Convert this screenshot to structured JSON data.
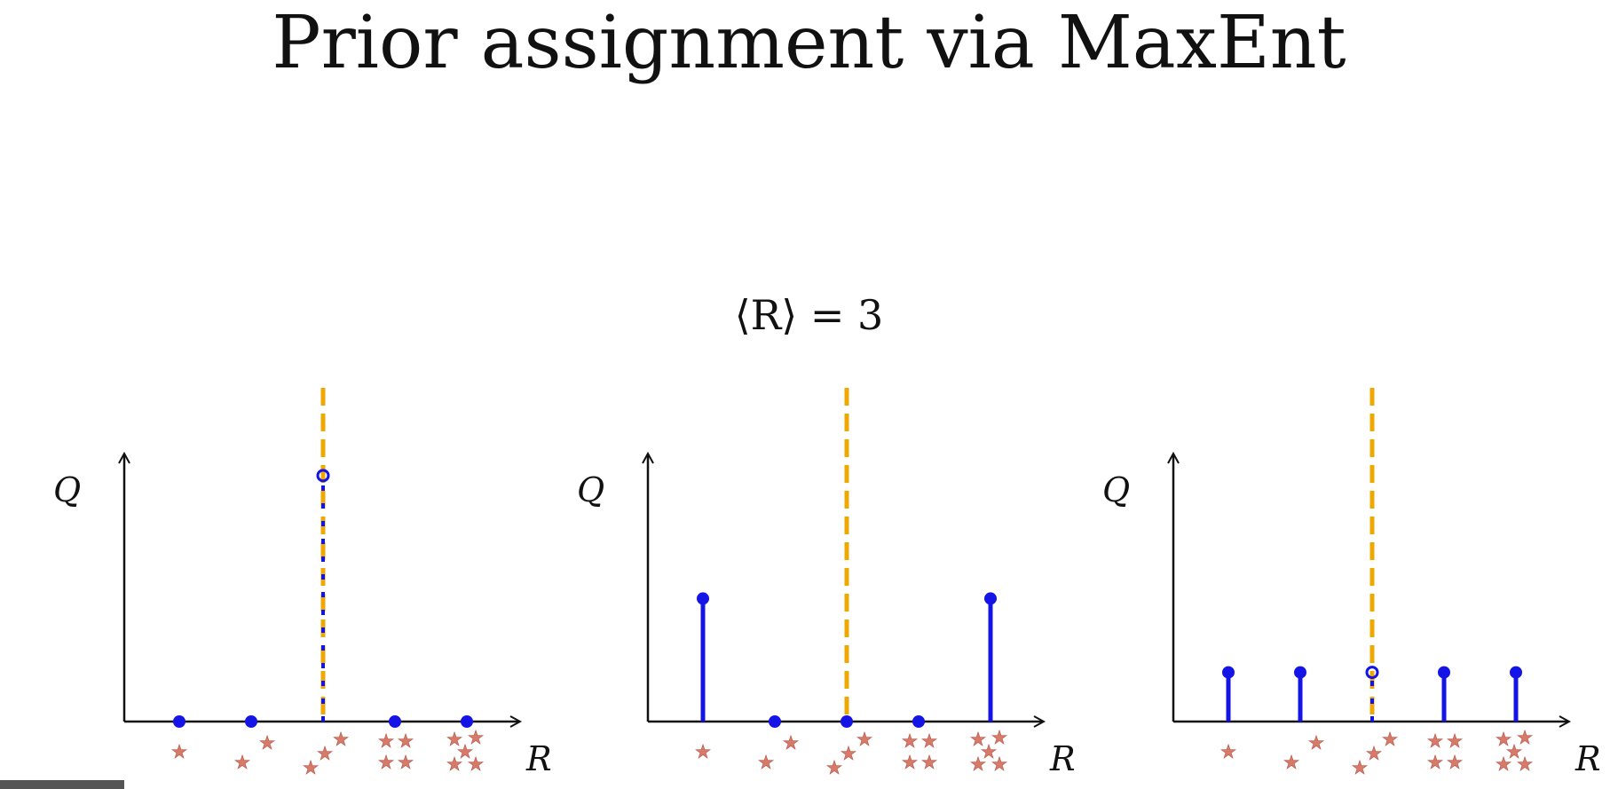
{
  "title": "Prior assignment via MaxEnt",
  "constraint": "⟨R⟩ = 3",
  "colors": {
    "stem": "#1414e6",
    "mean_line": "#eea800",
    "axis": "#111111",
    "star": "#d77a6a"
  },
  "chart_data": [
    {
      "type": "stem",
      "xlabel": "R",
      "ylabel": "Q",
      "x": [
        1,
        2,
        3,
        4,
        5
      ],
      "values": [
        0,
        0,
        1,
        0,
        0
      ],
      "mean_line_x": 3,
      "star_counts": [
        1,
        2,
        3,
        4,
        5
      ],
      "ylim": [
        0,
        1.05
      ]
    },
    {
      "type": "stem",
      "xlabel": "R",
      "ylabel": "Q",
      "x": [
        1,
        2,
        3,
        4,
        5
      ],
      "values": [
        0.5,
        0,
        0,
        0,
        0.5
      ],
      "mean_line_x": 3,
      "star_counts": [
        1,
        2,
        3,
        4,
        5
      ],
      "ylim": [
        0,
        1.05
      ]
    },
    {
      "type": "stem",
      "xlabel": "R",
      "ylabel": "Q",
      "x": [
        1,
        2,
        3,
        4,
        5
      ],
      "values": [
        0.2,
        0.2,
        0.2,
        0.2,
        0.2
      ],
      "mean_line_x": 3,
      "star_counts": [
        1,
        2,
        3,
        4,
        5
      ],
      "ylim": [
        0,
        1.05
      ]
    }
  ]
}
